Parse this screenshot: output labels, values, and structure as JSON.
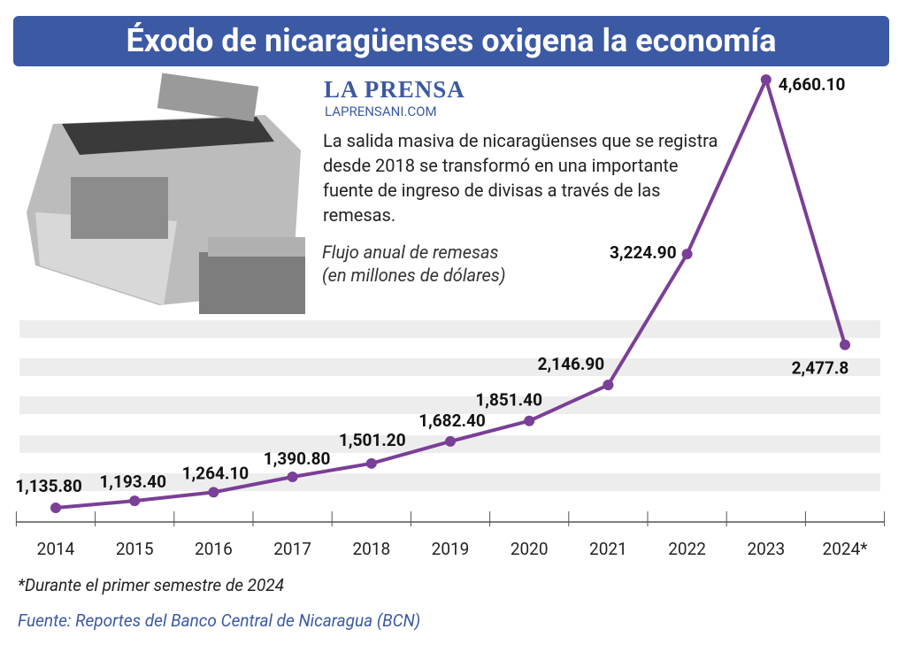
{
  "chart_data": {
    "type": "line",
    "title": "Éxodo de nicaragüenses oxigena la economía",
    "brand": "LA PRENSA",
    "website": "LAPRENSANI.COM",
    "description": "La salida masiva de nicaragüenses que se registra desde 2018 se transformó en una importante fuente de ingreso de divisas a través de las remesas.",
    "subtitle_lines": [
      "Flujo anual de remesas",
      "(en millones de dólares)"
    ],
    "categories": [
      "2014",
      "2015",
      "2016",
      "2017",
      "2018",
      "2019",
      "2020",
      "2021",
      "2022",
      "2023",
      "2024*"
    ],
    "values": [
      1135.8,
      1193.4,
      1264.1,
      1390.8,
      1501.2,
      1682.4,
      1851.4,
      2146.9,
      3224.9,
      4660.1,
      2477.8
    ],
    "value_labels": [
      "1,135.80",
      "1,193.40",
      "1,264.10",
      "1,390.80",
      "1,501.20",
      "1,682.40",
      "1,851.40",
      "2,146.90",
      "3,224.90",
      "4,660.10",
      "2,477.8"
    ],
    "color": "#7a3f97",
    "footnote": "*Durante el primer semestre de 2024",
    "source": "Fuente: Reportes del Banco Central de Nicaragua (BCN)"
  }
}
